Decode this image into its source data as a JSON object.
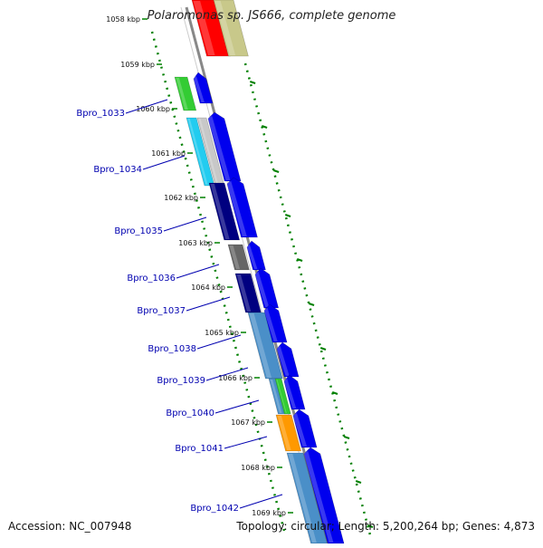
{
  "title": "Polaromonas sp. JS666, complete genome",
  "footer": {
    "accession": "Accession: NC_007948",
    "summary": "Topology: circular; Length: 5,200,264 bp; Genes: 4,873"
  },
  "scale_labels": [
    "1058 kbp",
    "1059 kbp",
    "1060 kbp",
    "1061 kbp",
    "1062 kbp",
    "1063 kbp",
    "1064 kbp",
    "1065 kbp",
    "1066 kbp",
    "1067 kbp",
    "1068 kbp",
    "1069 kbp"
  ],
  "gene_labels": [
    "Bpro_1033",
    "Bpro_1034",
    "Bpro_1035",
    "Bpro_1036",
    "Bpro_1037",
    "Bpro_1038",
    "Bpro_1039",
    "Bpro_1040",
    "Bpro_1041",
    "Bpro_1042"
  ],
  "colors": {
    "cds_arrow": "#0000ee",
    "backbone": "#888888",
    "tick_green": "#008000",
    "label_blue": "#0000b0",
    "red_feature": "#ff0000",
    "olive_feature": "#c8c88a",
    "green_feature": "#33cc33",
    "cyan_feature": "#22ccf0",
    "navy_feature": "#000080",
    "gray_feature": "#666666",
    "steelblue_feature": "#4a8fc8",
    "orange_feature": "#ff9900"
  }
}
